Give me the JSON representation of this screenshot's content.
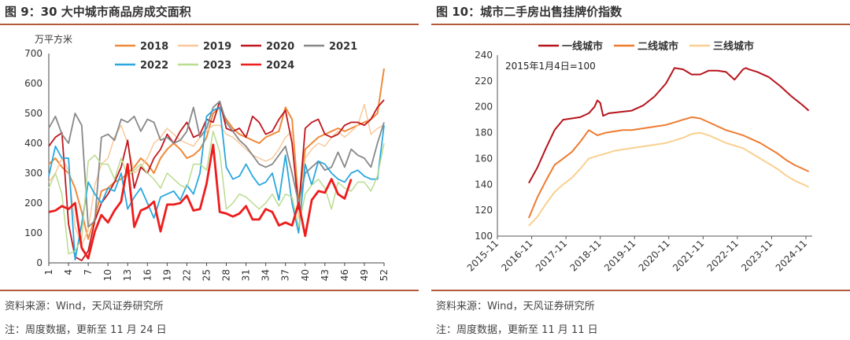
{
  "left": {
    "title": "图 9：30 大中城市商品房成交面积",
    "source": "资料来源：Wind，天风证券研究所",
    "note": "注：周度数据，更新至 11 月 24 日"
  },
  "right": {
    "title": "图 10：城市二手房出售挂牌价指数",
    "source": "资料来源：Wind，天风证券研究所",
    "note": "注：周度数据，更新至 11 月 11 日"
  },
  "chart_data": [
    {
      "type": "line",
      "title": "30 大中城市商品房成交面积",
      "ylabel": "万平方米",
      "ylim": [
        0,
        700
      ],
      "yticks": [
        0,
        100,
        200,
        300,
        400,
        500,
        600,
        700
      ],
      "xlim": [
        1,
        52
      ],
      "xticks": [
        1,
        4,
        7,
        10,
        13,
        16,
        19,
        22,
        25,
        28,
        31,
        34,
        37,
        40,
        43,
        46,
        49,
        52
      ],
      "legend_position": "top",
      "series": [
        {
          "name": "2018",
          "color": "#ee8a3a",
          "width": 2,
          "x": [
            1,
            2,
            3,
            4,
            5,
            6,
            7,
            8,
            9,
            10,
            11,
            12,
            13,
            14,
            15,
            16,
            17,
            18,
            19,
            20,
            21,
            22,
            23,
            24,
            25,
            26,
            27,
            28,
            29,
            30,
            31,
            32,
            33,
            34,
            35,
            36,
            37,
            38,
            39,
            40,
            41,
            42,
            43,
            44,
            45,
            46,
            47,
            48,
            49,
            50,
            51,
            52
          ],
          "values": [
            330,
            350,
            320,
            300,
            250,
            170,
            80,
            150,
            240,
            250,
            270,
            280,
            300,
            320,
            350,
            330,
            300,
            350,
            380,
            400,
            380,
            350,
            360,
            380,
            420,
            500,
            520,
            480,
            450,
            430,
            420,
            410,
            400,
            420,
            430,
            440,
            520,
            480,
            200,
            380,
            400,
            420,
            430,
            440,
            450,
            440,
            450,
            460,
            470,
            480,
            500,
            650
          ]
        },
        {
          "name": "2019",
          "color": "#f9c89b",
          "width": 1.5,
          "x": [
            1,
            2,
            3,
            4,
            5,
            6,
            7,
            8,
            9,
            10,
            11,
            12,
            13,
            14,
            15,
            16,
            17,
            18,
            19,
            20,
            21,
            22,
            23,
            24,
            25,
            26,
            27,
            28,
            29,
            30,
            31,
            32,
            33,
            34,
            35,
            36,
            37,
            38,
            39,
            40,
            41,
            42,
            43,
            44,
            45,
            46,
            47,
            48,
            49,
            50,
            51,
            52
          ],
          "values": [
            270,
            300,
            350,
            310,
            120,
            60,
            110,
            260,
            330,
            350,
            420,
            460,
            400,
            300,
            320,
            350,
            400,
            420,
            450,
            430,
            410,
            400,
            390,
            420,
            440,
            460,
            460,
            430,
            420,
            400,
            380,
            360,
            350,
            340,
            350,
            380,
            420,
            440,
            150,
            350,
            380,
            400,
            390,
            420,
            440,
            420,
            440,
            460,
            530,
            430,
            450,
            460
          ]
        },
        {
          "name": "2020",
          "color": "#c0161d",
          "width": 1.8,
          "x": [
            1,
            2,
            3,
            4,
            5,
            6,
            7,
            8,
            9,
            10,
            11,
            12,
            13,
            14,
            15,
            16,
            17,
            18,
            19,
            20,
            21,
            22,
            23,
            24,
            25,
            26,
            27,
            28,
            29,
            30,
            31,
            32,
            33,
            34,
            35,
            36,
            37,
            38,
            39,
            40,
            41,
            42,
            43,
            44,
            45,
            46,
            47,
            48,
            49,
            50,
            51,
            52
          ],
          "values": [
            390,
            420,
            435,
            130,
            20,
            8,
            40,
            140,
            200,
            230,
            270,
            320,
            410,
            250,
            320,
            300,
            350,
            380,
            430,
            400,
            440,
            470,
            420,
            430,
            480,
            470,
            540,
            450,
            440,
            450,
            420,
            490,
            470,
            430,
            440,
            480,
            510,
            400,
            180,
            450,
            470,
            480,
            430,
            420,
            430,
            460,
            470,
            470,
            460,
            480,
            520,
            545
          ]
        },
        {
          "name": "2021",
          "color": "#888888",
          "width": 1.8,
          "x": [
            1,
            2,
            3,
            4,
            5,
            6,
            7,
            8,
            9,
            10,
            11,
            12,
            13,
            14,
            15,
            16,
            17,
            18,
            19,
            20,
            21,
            22,
            23,
            24,
            25,
            26,
            27,
            28,
            29,
            30,
            31,
            32,
            33,
            34,
            35,
            36,
            37,
            38,
            39,
            40,
            41,
            42,
            43,
            44,
            45,
            46,
            47,
            48,
            49,
            50,
            51,
            52
          ],
          "values": [
            450,
            490,
            430,
            400,
            500,
            460,
            120,
            140,
            420,
            430,
            410,
            480,
            470,
            490,
            440,
            480,
            470,
            410,
            420,
            400,
            410,
            440,
            520,
            420,
            450,
            520,
            540,
            470,
            440,
            410,
            390,
            360,
            330,
            320,
            330,
            360,
            390,
            300,
            200,
            300,
            320,
            340,
            310,
            320,
            370,
            320,
            380,
            360,
            350,
            320,
            400,
            470
          ]
        },
        {
          "name": "2022",
          "color": "#2aa7de",
          "width": 1.8,
          "x": [
            1,
            2,
            3,
            4,
            5,
            6,
            7,
            8,
            9,
            10,
            11,
            12,
            13,
            14,
            15,
            16,
            17,
            18,
            19,
            20,
            21,
            22,
            23,
            24,
            25,
            26,
            27,
            28,
            29,
            30,
            31,
            32,
            33,
            34,
            35,
            36,
            37,
            38,
            39,
            40,
            41,
            42,
            43,
            44,
            45,
            46,
            47,
            48,
            49,
            50,
            51,
            52
          ],
          "values": [
            290,
            390,
            350,
            350,
            10,
            130,
            270,
            230,
            200,
            250,
            240,
            300,
            180,
            220,
            250,
            200,
            150,
            220,
            230,
            240,
            210,
            260,
            230,
            300,
            490,
            510,
            520,
            320,
            280,
            290,
            330,
            290,
            260,
            270,
            300,
            210,
            360,
            200,
            100,
            330,
            260,
            340,
            330,
            300,
            280,
            270,
            300,
            310,
            290,
            280,
            280,
            460
          ]
        },
        {
          "name": "2023",
          "color": "#b9dc8f",
          "width": 1.5,
          "x": [
            1,
            2,
            3,
            4,
            5,
            6,
            7,
            8,
            9,
            10,
            11,
            12,
            13,
            14,
            15,
            16,
            17,
            18,
            19,
            20,
            21,
            22,
            23,
            24,
            25,
            26,
            27,
            28,
            29,
            30,
            31,
            32,
            33,
            34,
            35,
            36,
            37,
            38,
            39,
            40,
            41,
            42,
            43,
            44,
            45,
            46,
            47,
            48,
            49,
            50,
            51,
            52
          ],
          "values": [
            250,
            300,
            230,
            30,
            40,
            80,
            340,
            360,
            330,
            330,
            280,
            350,
            290,
            310,
            330,
            300,
            280,
            250,
            300,
            280,
            260,
            250,
            330,
            330,
            310,
            440,
            370,
            180,
            200,
            230,
            220,
            200,
            180,
            200,
            230,
            190,
            230,
            220,
            120,
            230,
            260,
            280,
            250,
            180,
            270,
            250,
            240,
            270,
            270,
            240,
            290,
            400
          ]
        },
        {
          "name": "2024",
          "color": "#ee1c1c",
          "width": 2.8,
          "x": [
            1,
            2,
            3,
            4,
            5,
            6,
            7,
            8,
            9,
            10,
            11,
            12,
            13,
            14,
            15,
            16,
            17,
            18,
            19,
            20,
            21,
            22,
            23,
            24,
            25,
            26,
            27,
            28,
            29,
            30,
            31,
            32,
            33,
            34,
            35,
            36,
            37,
            38,
            39,
            40,
            41,
            42,
            43,
            44,
            45,
            46,
            47
          ],
          "values": [
            170,
            175,
            190,
            180,
            200,
            50,
            15,
            105,
            160,
            135,
            175,
            205,
            330,
            120,
            175,
            185,
            205,
            105,
            195,
            195,
            200,
            225,
            175,
            180,
            265,
            395,
            170,
            165,
            155,
            165,
            190,
            145,
            145,
            180,
            170,
            125,
            135,
            125,
            200,
            90,
            210,
            240,
            235,
            280,
            230,
            215,
            280
          ]
        }
      ]
    },
    {
      "type": "line",
      "title": "城市二手房出售挂牌价指数",
      "annotation": "2015年1月4日=100",
      "ylim": [
        100,
        240
      ],
      "yticks": [
        100,
        120,
        140,
        160,
        180,
        200,
        220,
        240
      ],
      "xticks": [
        "2015-11",
        "2016-11",
        "2017-11",
        "2018-11",
        "2019-11",
        "2020-11",
        "2021-11",
        "2022-11",
        "2023-11",
        "2024-11"
      ],
      "legend_position": "top",
      "series": [
        {
          "name": "一线城市",
          "color": "#b7141c",
          "x": [
            "2016-10",
            "2017-01",
            "2017-04",
            "2017-07",
            "2017-10",
            "2018-01",
            "2018-04",
            "2018-07",
            "2018-09",
            "2018-10",
            "2018-11",
            "2018-12",
            "2019-02",
            "2019-06",
            "2019-10",
            "2020-02",
            "2020-06",
            "2020-10",
            "2021-01",
            "2021-04",
            "2021-07",
            "2021-10",
            "2022-01",
            "2022-04",
            "2022-07",
            "2022-10",
            "2023-01",
            "2023-02",
            "2023-03",
            "2023-06",
            "2023-10",
            "2024-02",
            "2024-06",
            "2024-10",
            "2024-12"
          ],
          "values": [
            141,
            153,
            168,
            182,
            190,
            191,
            192,
            195,
            200,
            205,
            203,
            193,
            195,
            196,
            197,
            201,
            208,
            218,
            230,
            229,
            225,
            225,
            228,
            228,
            227,
            221,
            229,
            230,
            229,
            227,
            223,
            216,
            208,
            201,
            197
          ]
        },
        {
          "name": "二线城市",
          "color": "#ee7b30",
          "x": [
            "2016-10",
            "2017-01",
            "2017-04",
            "2017-07",
            "2017-10",
            "2018-01",
            "2018-04",
            "2018-07",
            "2018-10",
            "2019-01",
            "2019-04",
            "2019-07",
            "2019-10",
            "2020-01",
            "2020-04",
            "2020-07",
            "2020-10",
            "2021-01",
            "2021-04",
            "2021-07",
            "2021-10",
            "2022-01",
            "2022-04",
            "2022-07",
            "2022-10",
            "2023-01",
            "2023-04",
            "2023-07",
            "2023-10",
            "2024-01",
            "2024-04",
            "2024-07",
            "2024-10",
            "2024-12"
          ],
          "values": [
            114,
            130,
            143,
            155,
            160,
            165,
            173,
            182,
            178,
            180,
            181,
            182,
            182,
            183,
            184,
            185,
            186,
            188,
            190,
            192,
            191,
            188,
            185,
            182,
            180,
            178,
            175,
            172,
            168,
            164,
            159,
            155,
            152,
            150
          ]
        },
        {
          "name": "三线城市",
          "color": "#f9d08f",
          "x": [
            "2016-10",
            "2017-01",
            "2017-04",
            "2017-07",
            "2017-10",
            "2018-01",
            "2018-04",
            "2018-07",
            "2018-10",
            "2019-01",
            "2019-04",
            "2019-07",
            "2019-10",
            "2020-01",
            "2020-04",
            "2020-07",
            "2020-10",
            "2021-01",
            "2021-04",
            "2021-07",
            "2021-10",
            "2022-01",
            "2022-04",
            "2022-07",
            "2022-10",
            "2023-01",
            "2023-04",
            "2023-07",
            "2023-10",
            "2024-01",
            "2024-04",
            "2024-07",
            "2024-10",
            "2024-12"
          ],
          "values": [
            108,
            115,
            125,
            134,
            140,
            145,
            152,
            160,
            162,
            164,
            166,
            167,
            168,
            169,
            170,
            171,
            172,
            174,
            176,
            179,
            180,
            178,
            175,
            172,
            170,
            168,
            164,
            160,
            156,
            152,
            147,
            143,
            140,
            138
          ]
        }
      ]
    }
  ]
}
